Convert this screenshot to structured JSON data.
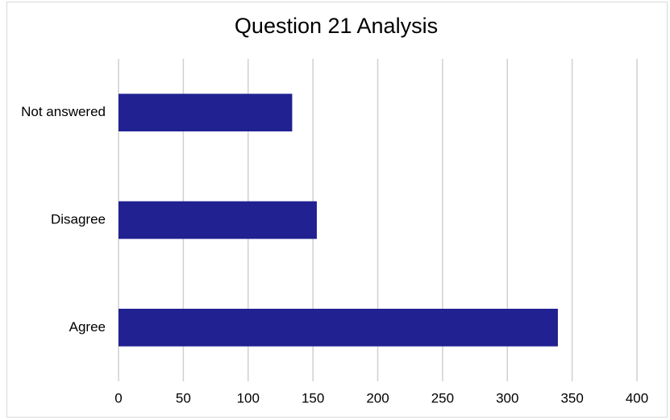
{
  "chart_data": {
    "type": "bar",
    "title": "Question 21 Analysis",
    "categories": [
      "Not answered",
      "Disagree",
      "Agree"
    ],
    "values": [
      134,
      153,
      339
    ],
    "color": "#212192",
    "xlim": [
      0,
      400
    ],
    "xticks": [
      0,
      50,
      100,
      150,
      200,
      250,
      300,
      350,
      400
    ],
    "grid": true
  }
}
